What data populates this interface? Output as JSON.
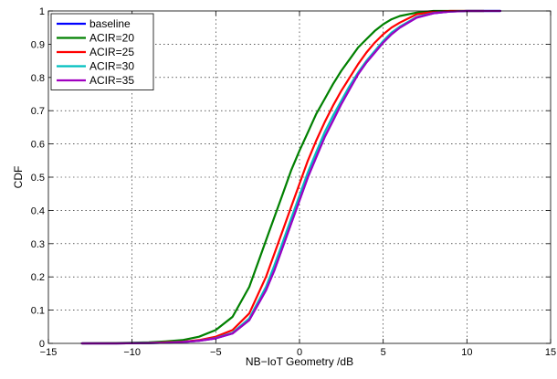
{
  "chart_data": {
    "type": "line",
    "title": "",
    "xlabel": "NB−IoT Geometry /dB",
    "ylabel": "CDF",
    "xlim": [
      -15,
      15
    ],
    "ylim": [
      0,
      1
    ],
    "xticks": [
      -15,
      -10,
      -5,
      0,
      5,
      10,
      15
    ],
    "xtick_labels": [
      "−15",
      "−10",
      "−5",
      "0",
      "5",
      "10",
      "15"
    ],
    "yticks": [
      0,
      0.1,
      0.2,
      0.3,
      0.4,
      0.5,
      0.6,
      0.7,
      0.8,
      0.9,
      1
    ],
    "ytick_labels": [
      "0",
      "0.1",
      "0.2",
      "0.3",
      "0.4",
      "0.5",
      "0.6",
      "0.7",
      "0.8",
      "0.9",
      "1"
    ],
    "grid": true,
    "legend_position": "top-left",
    "series": [
      {
        "name": "baseline",
        "color": "#0000ff",
        "x": [
          -13,
          -11,
          -9,
          -8,
          -7,
          -6,
          -5,
          -4,
          -3,
          -2,
          -1.5,
          -1,
          -0.5,
          0,
          0.5,
          1,
          1.5,
          2,
          2.5,
          3,
          3.5,
          4,
          4.5,
          5,
          5.5,
          6,
          7,
          8,
          9,
          10,
          11,
          12
        ],
        "y": [
          0,
          0,
          0.001,
          0.002,
          0.004,
          0.008,
          0.015,
          0.03,
          0.07,
          0.16,
          0.22,
          0.29,
          0.36,
          0.43,
          0.5,
          0.56,
          0.62,
          0.67,
          0.72,
          0.765,
          0.81,
          0.845,
          0.875,
          0.905,
          0.93,
          0.95,
          0.98,
          0.993,
          0.998,
          1,
          1,
          1
        ]
      },
      {
        "name": "ACIR=20",
        "color": "#008000",
        "x": [
          -13,
          -11,
          -9,
          -8,
          -7,
          -6,
          -5,
          -4,
          -3,
          -2.5,
          -2,
          -1.5,
          -1,
          -0.5,
          0,
          0.5,
          1,
          1.5,
          2,
          2.5,
          3,
          3.5,
          4,
          4.5,
          5,
          5.5,
          6,
          7,
          8,
          9,
          10,
          11
        ],
        "y": [
          0,
          0.001,
          0.003,
          0.006,
          0.01,
          0.02,
          0.04,
          0.08,
          0.17,
          0.24,
          0.31,
          0.38,
          0.45,
          0.52,
          0.58,
          0.635,
          0.69,
          0.735,
          0.78,
          0.82,
          0.855,
          0.89,
          0.915,
          0.94,
          0.96,
          0.975,
          0.985,
          0.995,
          1,
          1,
          1,
          1
        ]
      },
      {
        "name": "ACIR=25",
        "color": "#ff0000",
        "x": [
          -13,
          -11,
          -9,
          -8,
          -7,
          -6,
          -5,
          -4,
          -3,
          -2,
          -1.5,
          -1,
          -0.5,
          0,
          0.5,
          1,
          1.5,
          2,
          2.5,
          3,
          3.5,
          4,
          4.5,
          5,
          5.5,
          6,
          7,
          8,
          9,
          10,
          11
        ],
        "y": [
          0,
          0,
          0.001,
          0.003,
          0.005,
          0.01,
          0.02,
          0.04,
          0.09,
          0.2,
          0.27,
          0.34,
          0.41,
          0.48,
          0.55,
          0.61,
          0.665,
          0.715,
          0.76,
          0.8,
          0.84,
          0.875,
          0.905,
          0.93,
          0.95,
          0.965,
          0.99,
          0.997,
          1,
          1,
          1
        ]
      },
      {
        "name": "ACIR=30",
        "color": "#00bfbf",
        "x": [
          -13,
          -11,
          -9,
          -8,
          -7,
          -6,
          -5,
          -4,
          -3,
          -2,
          -1.5,
          -1,
          -0.5,
          0,
          0.5,
          1,
          1.5,
          2,
          2.5,
          3,
          3.5,
          4,
          4.5,
          5,
          5.5,
          6,
          7,
          8,
          9,
          10,
          11,
          12
        ],
        "y": [
          0,
          0,
          0.001,
          0.002,
          0.004,
          0.008,
          0.016,
          0.032,
          0.075,
          0.17,
          0.235,
          0.305,
          0.375,
          0.445,
          0.515,
          0.575,
          0.635,
          0.685,
          0.73,
          0.775,
          0.815,
          0.85,
          0.88,
          0.91,
          0.935,
          0.953,
          0.982,
          0.994,
          0.998,
          1,
          1,
          1
        ]
      },
      {
        "name": "ACIR=35",
        "color": "#a000c0",
        "x": [
          -13,
          -11,
          -9,
          -8,
          -7,
          -6,
          -5,
          -4,
          -3,
          -2,
          -1.5,
          -1,
          -0.5,
          0,
          0.5,
          1,
          1.5,
          2,
          2.5,
          3,
          3.5,
          4,
          4.5,
          5,
          5.5,
          6,
          7,
          8,
          9,
          10,
          11,
          12
        ],
        "y": [
          0,
          0,
          0.001,
          0.002,
          0.004,
          0.008,
          0.015,
          0.03,
          0.07,
          0.16,
          0.22,
          0.29,
          0.36,
          0.43,
          0.5,
          0.56,
          0.62,
          0.67,
          0.72,
          0.765,
          0.81,
          0.845,
          0.875,
          0.905,
          0.93,
          0.95,
          0.98,
          0.993,
          0.998,
          1,
          1,
          1
        ]
      }
    ]
  }
}
